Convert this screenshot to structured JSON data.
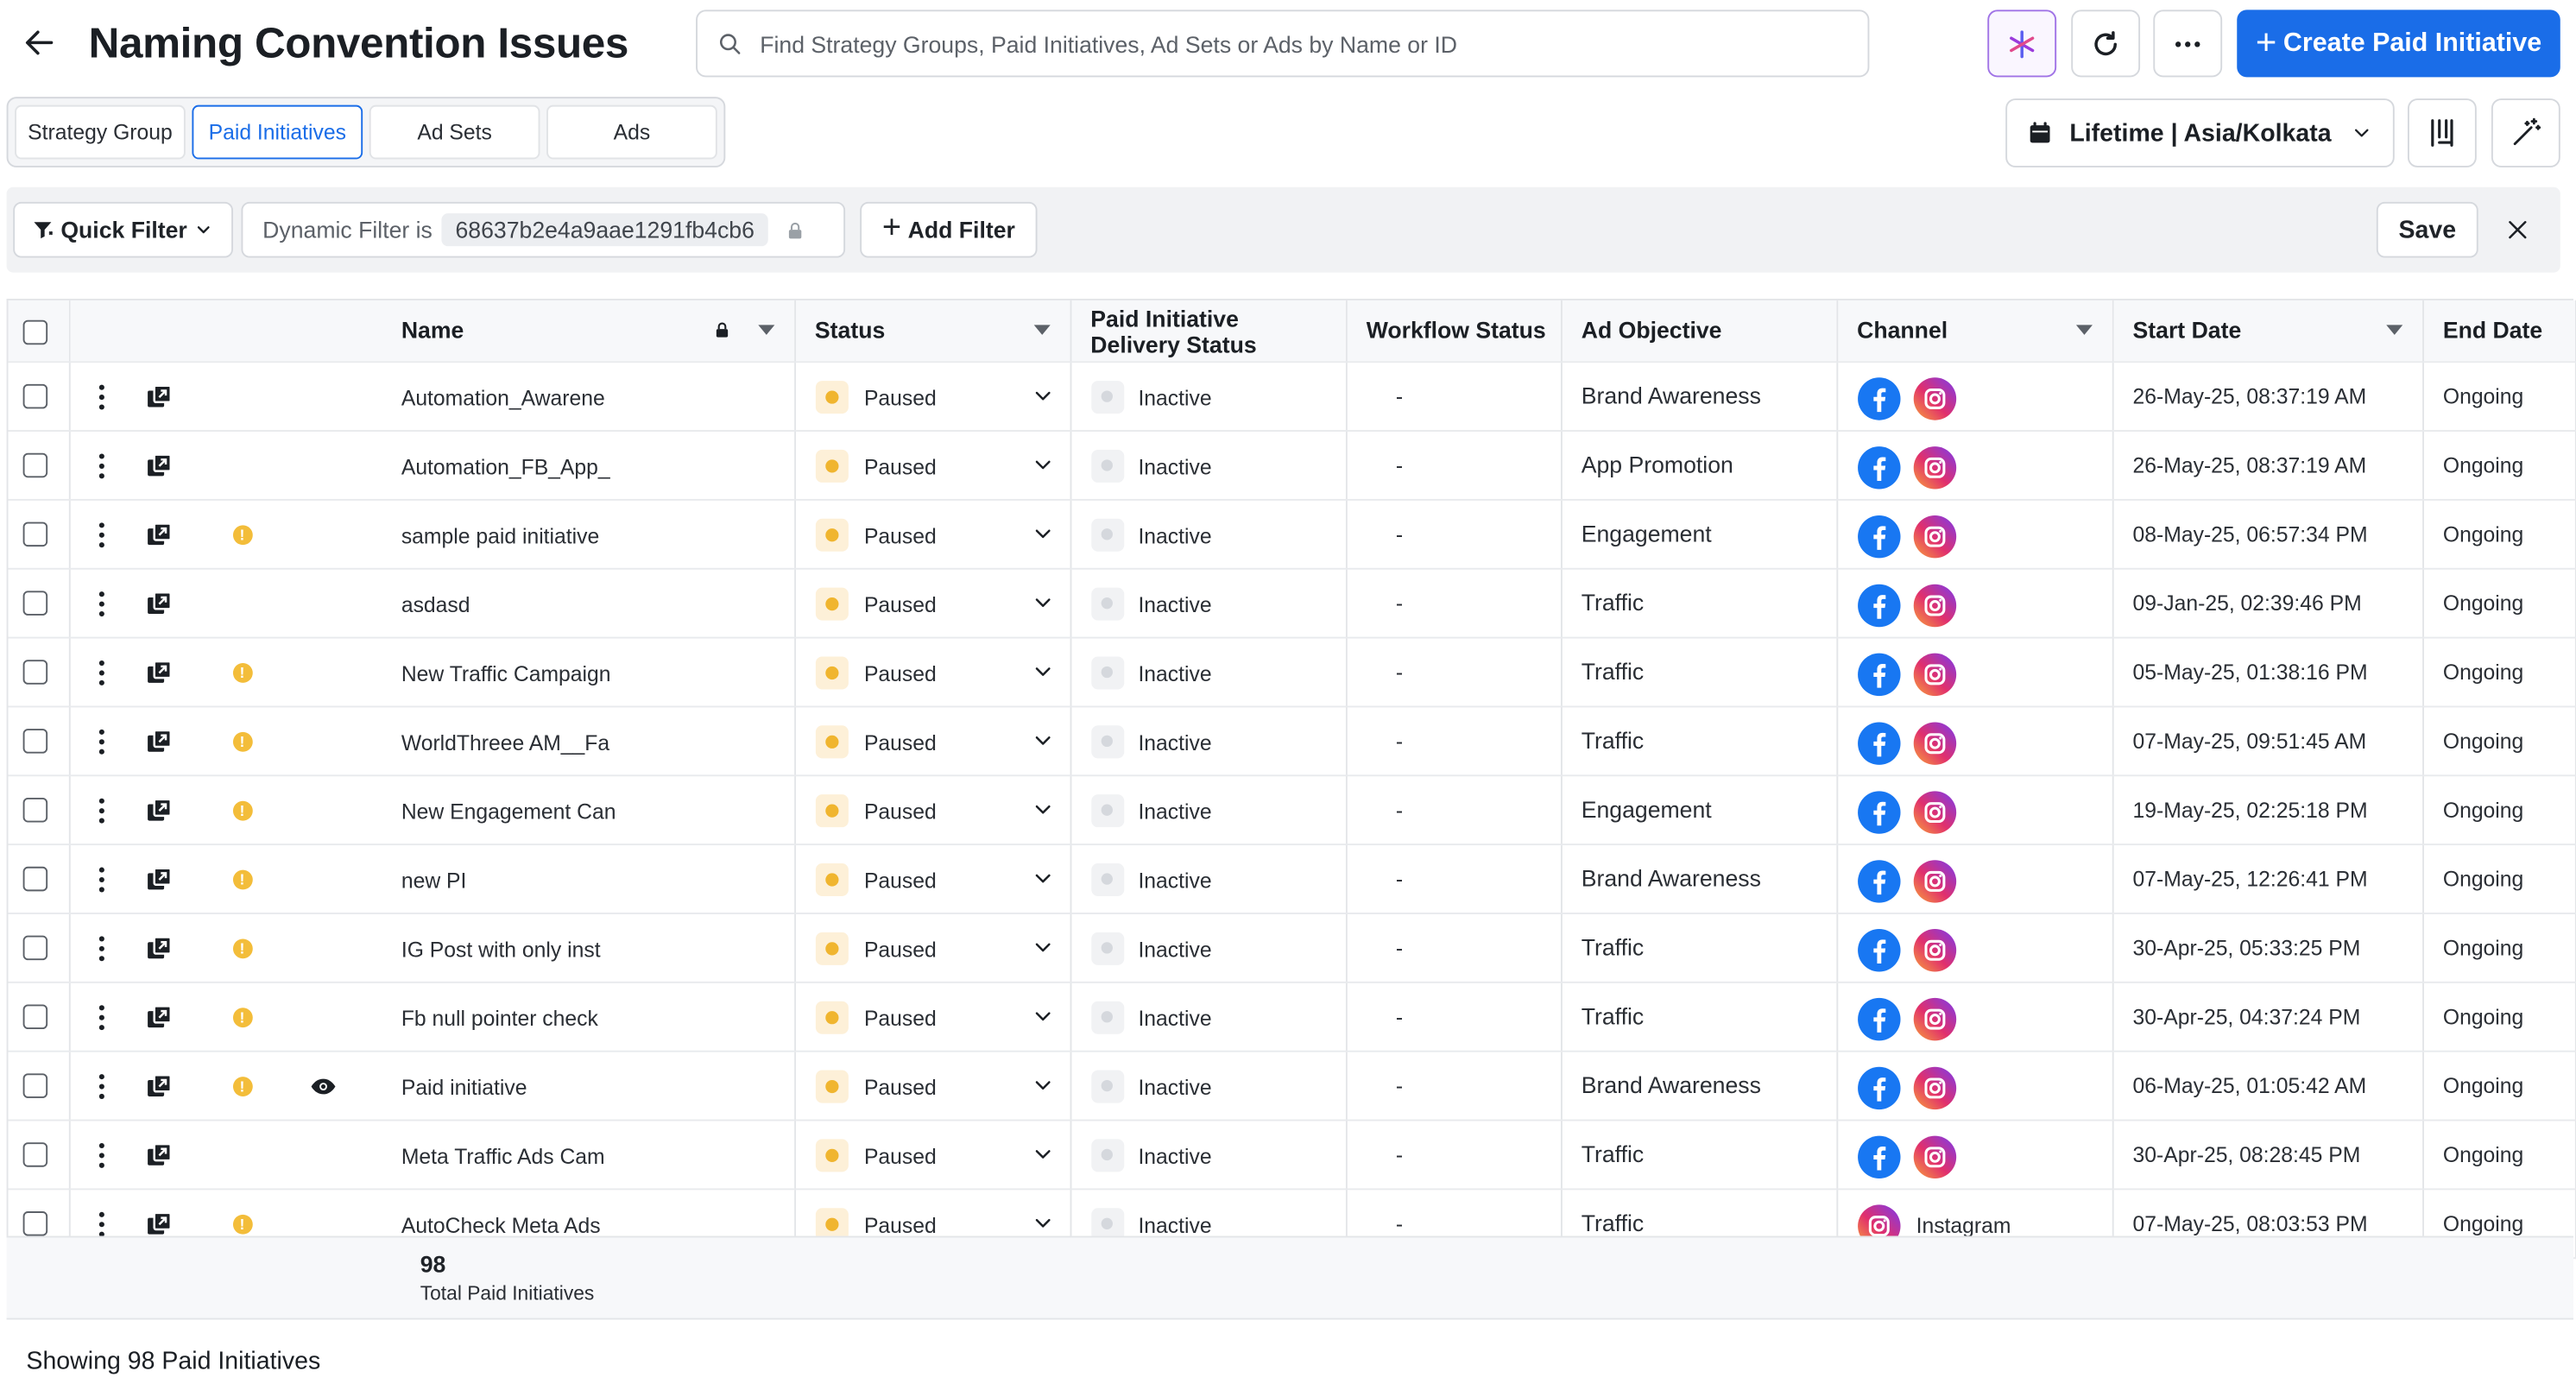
{
  "header": {
    "title": "Naming Convention Issues",
    "search_placeholder": "Find Strategy Groups, Paid Initiatives, Ad Sets or Ads by Name or ID",
    "create_label": "Create Paid Initiative"
  },
  "tabs": [
    {
      "label": "Strategy Group",
      "active": false
    },
    {
      "label": "Paid Initiatives",
      "active": true
    },
    {
      "label": "Ad Sets",
      "active": false
    },
    {
      "label": "Ads",
      "active": false
    }
  ],
  "date_range": "Lifetime | Asia/Kolkata",
  "filters": {
    "quick_filter_label": "Quick Filter",
    "dynamic_filter_label": "Dynamic Filter is",
    "dynamic_filter_value": "68637b2e4a9aae1291fb4cb6",
    "add_filter_label": "Add Filter",
    "save_label": "Save"
  },
  "columns": {
    "name": "Name",
    "status": "Status",
    "delivery": "Paid Initiative Delivery Status",
    "workflow": "Workflow Status",
    "objective": "Ad Objective",
    "channel": "Channel",
    "start": "Start Date",
    "end": "End Date"
  },
  "rows": [
    {
      "name": "Automation_Awarene",
      "warn": false,
      "eye": false,
      "status": "Paused",
      "delivery": "Inactive",
      "workflow": "-",
      "objective": "Brand Awareness",
      "channels": [
        "facebook",
        "instagram"
      ],
      "channel_label": "",
      "start": "26-May-25, 08:37:19 AM",
      "end": "Ongoing"
    },
    {
      "name": "Automation_FB_App_",
      "warn": false,
      "eye": false,
      "status": "Paused",
      "delivery": "Inactive",
      "workflow": "-",
      "objective": "App Promotion",
      "channels": [
        "facebook",
        "instagram"
      ],
      "channel_label": "",
      "start": "26-May-25, 08:37:19 AM",
      "end": "Ongoing"
    },
    {
      "name": "sample paid initiative",
      "warn": true,
      "eye": false,
      "status": "Paused",
      "delivery": "Inactive",
      "workflow": "-",
      "objective": "Engagement",
      "channels": [
        "facebook",
        "instagram"
      ],
      "channel_label": "",
      "start": "08-May-25, 06:57:34 PM",
      "end": "Ongoing"
    },
    {
      "name": "asdasd",
      "warn": false,
      "eye": false,
      "status": "Paused",
      "delivery": "Inactive",
      "workflow": "-",
      "objective": "Traffic",
      "channels": [
        "facebook",
        "instagram"
      ],
      "channel_label": "",
      "start": "09-Jan-25, 02:39:46 PM",
      "end": "Ongoing"
    },
    {
      "name": "New Traffic Campaign",
      "warn": true,
      "eye": false,
      "status": "Paused",
      "delivery": "Inactive",
      "workflow": "-",
      "objective": "Traffic",
      "channels": [
        "facebook",
        "instagram"
      ],
      "channel_label": "",
      "start": "05-May-25, 01:38:16 PM",
      "end": "Ongoing"
    },
    {
      "name": "WorldThreee AM__Fa",
      "warn": true,
      "eye": false,
      "status": "Paused",
      "delivery": "Inactive",
      "workflow": "-",
      "objective": "Traffic",
      "channels": [
        "facebook",
        "instagram"
      ],
      "channel_label": "",
      "start": "07-May-25, 09:51:45 AM",
      "end": "Ongoing"
    },
    {
      "name": "New Engagement Can",
      "warn": true,
      "eye": false,
      "status": "Paused",
      "delivery": "Inactive",
      "workflow": "-",
      "objective": "Engagement",
      "channels": [
        "facebook",
        "instagram"
      ],
      "channel_label": "",
      "start": "19-May-25, 02:25:18 PM",
      "end": "Ongoing"
    },
    {
      "name": "new PI",
      "warn": true,
      "eye": false,
      "status": "Paused",
      "delivery": "Inactive",
      "workflow": "-",
      "objective": "Brand Awareness",
      "channels": [
        "facebook",
        "instagram"
      ],
      "channel_label": "",
      "start": "07-May-25, 12:26:41 PM",
      "end": "Ongoing"
    },
    {
      "name": "IG Post with only inst",
      "warn": true,
      "eye": false,
      "status": "Paused",
      "delivery": "Inactive",
      "workflow": "-",
      "objective": "Traffic",
      "channels": [
        "facebook",
        "instagram"
      ],
      "channel_label": "",
      "start": "30-Apr-25, 05:33:25 PM",
      "end": "Ongoing"
    },
    {
      "name": "Fb null pointer check",
      "warn": true,
      "eye": false,
      "status": "Paused",
      "delivery": "Inactive",
      "workflow": "-",
      "objective": "Traffic",
      "channels": [
        "facebook",
        "instagram"
      ],
      "channel_label": "",
      "start": "30-Apr-25, 04:37:24 PM",
      "end": "Ongoing"
    },
    {
      "name": "Paid initiative",
      "warn": true,
      "eye": true,
      "status": "Paused",
      "delivery": "Inactive",
      "workflow": "-",
      "objective": "Brand Awareness",
      "channels": [
        "facebook",
        "instagram"
      ],
      "channel_label": "",
      "start": "06-May-25, 01:05:42 AM",
      "end": "Ongoing"
    },
    {
      "name": "Meta Traffic Ads Cam",
      "warn": false,
      "eye": false,
      "status": "Paused",
      "delivery": "Inactive",
      "workflow": "-",
      "objective": "Traffic",
      "channels": [
        "facebook",
        "instagram"
      ],
      "channel_label": "",
      "start": "30-Apr-25, 08:28:45 PM",
      "end": "Ongoing"
    },
    {
      "name": "AutoCheck Meta Ads",
      "warn": true,
      "eye": false,
      "status": "Paused",
      "delivery": "Inactive",
      "workflow": "-",
      "objective": "Traffic",
      "channels": [
        "instagram"
      ],
      "channel_label": "Instagram",
      "start": "07-May-25, 08:03:53 PM",
      "end": "Ongoing"
    }
  ],
  "totals": {
    "count": "98",
    "label": "Total Paid Initiatives"
  },
  "showing": "Showing 98 Paid Initiatives",
  "colors": {
    "accent": "#1a6de8",
    "paused": "#f0b52f",
    "warning": "#f3bd3a",
    "facebook": "#1877f2",
    "instagram": "#c13584"
  }
}
